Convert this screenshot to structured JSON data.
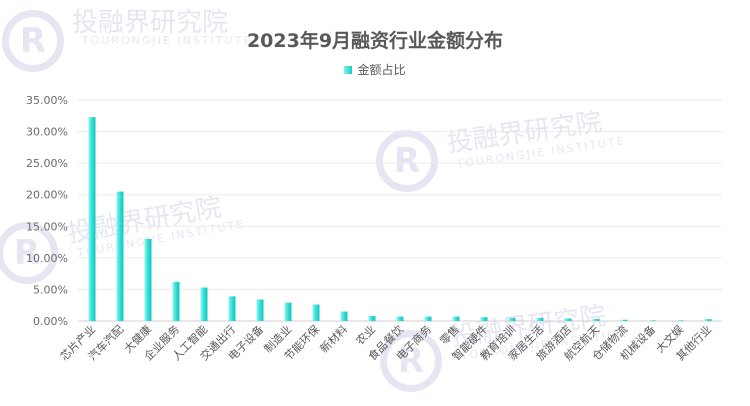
{
  "watermark": {
    "text_cn": "投融界研究院",
    "text_en": "TOURONGJIE INSTITUTE"
  },
  "chart_data": {
    "type": "bar",
    "title": "2023年9月融资行业金额分布",
    "legend_position": "top",
    "grid": true,
    "ylim": [
      0,
      35
    ],
    "yticks": [
      "0.00%",
      "5.00%",
      "10.00%",
      "15.00%",
      "20.00%",
      "25.00%",
      "30.00%",
      "35.00%"
    ],
    "categories": [
      "芯片产业",
      "汽车汽配",
      "大健康",
      "企业服务",
      "人工智能",
      "交通出行",
      "电子设备",
      "制造业",
      "节能环保",
      "新材料",
      "农业",
      "食品餐饮",
      "电子商务",
      "零售",
      "智能硬件",
      "教育培训",
      "家居生活",
      "旅游酒店",
      "航空航天",
      "仓储物流",
      "机械设备",
      "大文娱",
      "其他行业"
    ],
    "series": [
      {
        "name": "金额占比",
        "color": "#1fd3cc",
        "values": [
          32.3,
          20.5,
          13.0,
          6.2,
          5.3,
          3.9,
          3.4,
          2.9,
          2.6,
          1.5,
          0.8,
          0.7,
          0.7,
          0.7,
          0.6,
          0.5,
          0.5,
          0.4,
          0.3,
          0.2,
          0.1,
          0.1,
          0.3
        ]
      }
    ]
  }
}
